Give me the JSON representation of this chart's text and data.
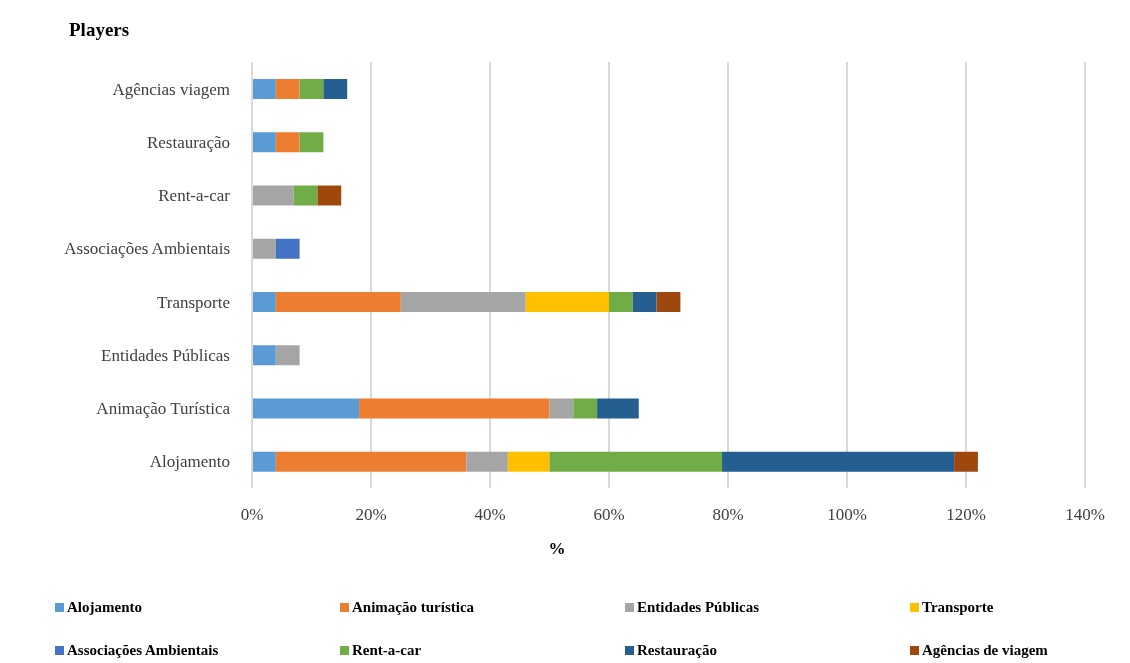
{
  "chart_data": {
    "type": "bar",
    "orientation": "horizontal",
    "stacked": true,
    "ylabel": "Players",
    "xlabel": "%",
    "categories": [
      "Agências viagem",
      "Restauração",
      "Rent-a-car",
      "Associações Ambientais",
      "Transporte",
      "Entidades Públicas",
      "Animação Turística",
      "Alojamento"
    ],
    "series": [
      {
        "name": "Alojamento",
        "color": "#5b9bd5",
        "values": [
          4,
          4,
          null,
          null,
          4,
          4,
          18,
          4
        ]
      },
      {
        "name": "Animação turística",
        "color": "#ed7d31",
        "values": [
          4,
          4,
          null,
          null,
          21,
          null,
          32,
          32
        ]
      },
      {
        "name": "Entidades Públicas",
        "color": "#a5a5a5",
        "values": [
          null,
          null,
          7,
          4,
          21,
          4,
          4,
          7
        ]
      },
      {
        "name": "Transporte",
        "color": "#ffc000",
        "values": [
          null,
          null,
          null,
          null,
          14,
          null,
          null,
          7
        ]
      },
      {
        "name": "Associações Ambientais",
        "color": "#4472c4",
        "values": [
          null,
          null,
          null,
          4,
          null,
          null,
          null,
          null
        ]
      },
      {
        "name": "Rent-a-car",
        "color": "#70ad47",
        "values": [
          4,
          4,
          4,
          null,
          4,
          null,
          4,
          29
        ]
      },
      {
        "name": "Restauração",
        "color": "#255e91",
        "values": [
          4,
          null,
          null,
          null,
          4,
          null,
          7,
          39
        ]
      },
      {
        "name": "Agências de viagem",
        "color": "#9e480e",
        "values": [
          null,
          null,
          4,
          null,
          4,
          null,
          null,
          4
        ]
      }
    ],
    "xlim": [
      0,
      140
    ],
    "xticks": [
      {
        "value": 0,
        "label": "0%"
      },
      {
        "value": 20,
        "label": "20%"
      },
      {
        "value": 40,
        "label": "40%"
      },
      {
        "value": 60,
        "label": "60%"
      },
      {
        "value": 80,
        "label": "80%"
      },
      {
        "value": 100,
        "label": "100%"
      },
      {
        "value": 120,
        "label": "120%"
      },
      {
        "value": 140,
        "label": "140%"
      }
    ],
    "grid": "x",
    "legend": "bottom"
  }
}
